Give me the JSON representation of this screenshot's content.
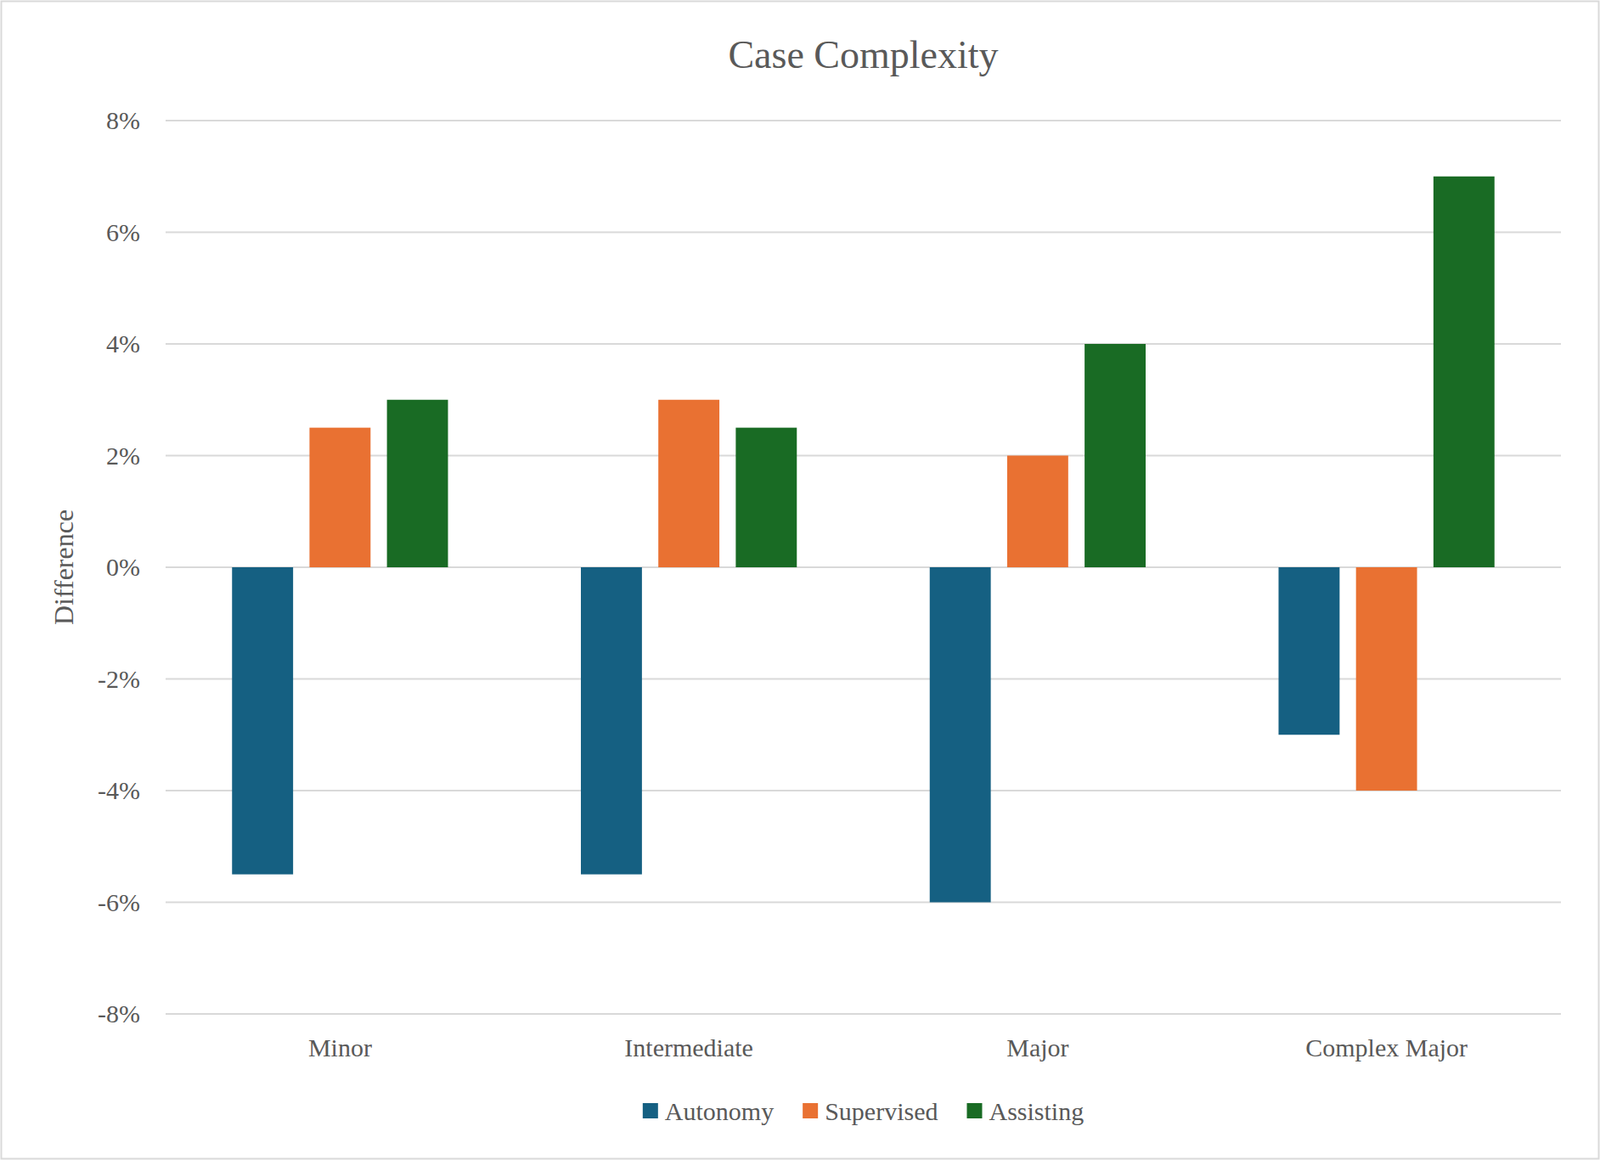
{
  "chart_data": {
    "type": "bar",
    "title": "Case Complexity",
    "y_label": "Difference",
    "categories": [
      "Minor",
      "Intermediate",
      "Major",
      "Complex Major"
    ],
    "series": [
      {
        "name": "Autonomy",
        "color": "#156082",
        "values": [
          -5.5,
          -5.5,
          -6,
          -3
        ]
      },
      {
        "name": "Supervised",
        "color": "#e97132",
        "values": [
          2.5,
          3,
          2,
          -4
        ]
      },
      {
        "name": "Assisting",
        "color": "#196b24",
        "values": [
          3,
          2.5,
          4,
          7
        ]
      }
    ],
    "ylim": [
      -8,
      8
    ],
    "yticks": [
      {
        "value": -8,
        "label": "-8%"
      },
      {
        "value": -6,
        "label": "-6%"
      },
      {
        "value": -4,
        "label": "-4%"
      },
      {
        "value": -2,
        "label": "-2%"
      },
      {
        "value": 0,
        "label": "0%"
      },
      {
        "value": 2,
        "label": "2%"
      },
      {
        "value": 4,
        "label": "4%"
      },
      {
        "value": 6,
        "label": "6%"
      },
      {
        "value": 8,
        "label": "8%"
      }
    ],
    "grid": true,
    "legend": "bottom"
  }
}
